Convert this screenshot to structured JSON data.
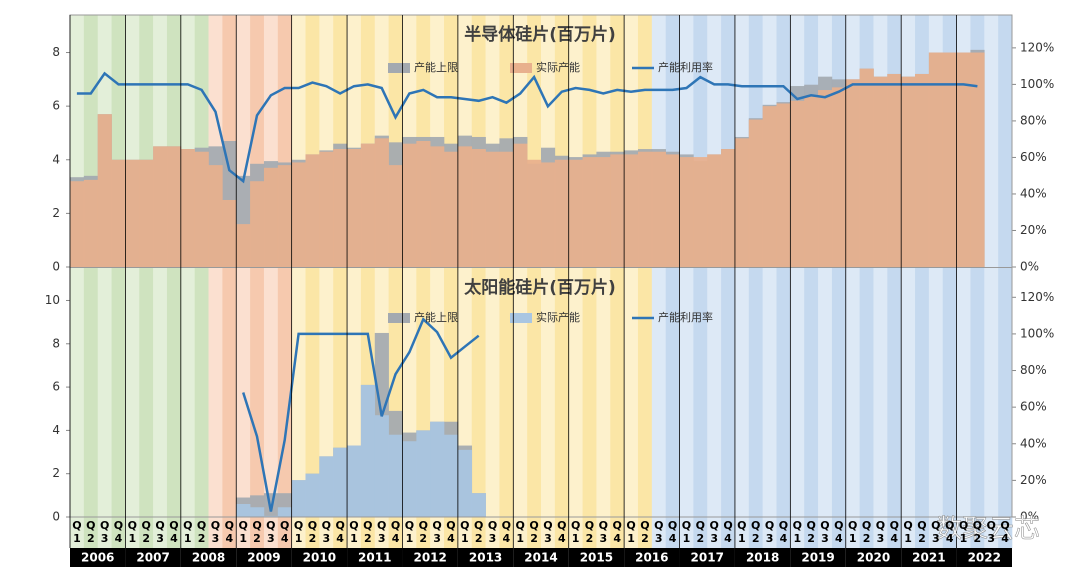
{
  "x_axis": {
    "categories": [
      "Q1",
      "Q2",
      "Q3",
      "Q4",
      "Q1",
      "Q2",
      "Q3",
      "Q4",
      "Q1",
      "Q2",
      "Q3",
      "Q4",
      "Q1",
      "Q2",
      "Q3",
      "Q4",
      "Q1",
      "Q2",
      "Q3",
      "Q4",
      "Q1",
      "Q2",
      "Q3",
      "Q4",
      "Q1",
      "Q2",
      "Q3",
      "Q4",
      "Q1",
      "Q2",
      "Q3",
      "Q4",
      "Q1",
      "Q2",
      "Q3",
      "Q4",
      "Q1",
      "Q2",
      "Q3",
      "Q4",
      "Q1",
      "Q2",
      "Q3",
      "Q4",
      "Q1",
      "Q2",
      "Q3",
      "Q4",
      "Q1",
      "Q2",
      "Q3",
      "Q4",
      "Q1",
      "Q2",
      "Q3",
      "Q4",
      "Q1",
      "Q2",
      "Q3",
      "Q4",
      "Q1",
      "Q2",
      "Q3",
      "Q4",
      "Q1",
      "Q2",
      "Q3",
      "Q4"
    ],
    "years": [
      "2006",
      "2007",
      "2008",
      "2009",
      "2010",
      "2011",
      "2012",
      "2013",
      "2014",
      "2015",
      "2016",
      "2017",
      "2018",
      "2019",
      "2020",
      "2021",
      "2022"
    ]
  },
  "watermark": "数聚云芯",
  "chart_data": [
    {
      "type": "bar-line",
      "title": "半导体硅片(百万片)",
      "ylim": [
        0,
        9.4
      ],
      "yticks": [
        0,
        2,
        4,
        6,
        8
      ],
      "y2lim": [
        0,
        138
      ],
      "y2ticks": [
        {
          "value": 0,
          "label": "0%"
        },
        {
          "value": 20,
          "label": "20%"
        },
        {
          "value": 40,
          "label": "40%"
        },
        {
          "value": 60,
          "label": "60%"
        },
        {
          "value": 80,
          "label": "80%"
        },
        {
          "value": 100,
          "label": "100%"
        },
        {
          "value": 120,
          "label": "120%"
        }
      ],
      "series": [
        {
          "name": "产能上限",
          "type": "bar",
          "color": "#a3a9b0",
          "values": [
            3.35,
            3.4,
            5.7,
            4.0,
            4.0,
            4.0,
            4.5,
            4.5,
            4.4,
            4.45,
            4.5,
            4.7,
            3.4,
            3.85,
            3.95,
            3.9,
            4.0,
            4.2,
            4.35,
            4.6,
            4.45,
            4.6,
            4.9,
            4.65,
            4.85,
            4.85,
            4.85,
            4.6,
            4.9,
            4.85,
            4.6,
            4.8,
            4.85,
            3.85,
            4.45,
            4.15,
            4.1,
            4.2,
            4.3,
            4.3,
            4.35,
            4.4,
            4.4,
            4.3,
            4.2,
            3.95,
            4.2,
            4.4,
            4.85,
            5.55,
            6.05,
            6.15,
            6.75,
            6.8,
            7.1,
            7.0,
            7.0,
            7.4,
            7.1,
            7.2,
            7.1,
            7.2,
            8.0,
            8.0,
            8.0,
            8.1,
            null,
            null
          ]
        },
        {
          "name": "实际产能",
          "type": "bar",
          "color": "#e8b08d",
          "values": [
            3.2,
            3.25,
            5.7,
            4.0,
            4.0,
            4.0,
            4.5,
            4.5,
            4.4,
            4.3,
            3.8,
            2.5,
            1.6,
            3.2,
            3.7,
            3.8,
            3.9,
            4.2,
            4.3,
            4.4,
            4.4,
            4.6,
            4.8,
            3.8,
            4.6,
            4.7,
            4.5,
            4.3,
            4.5,
            4.4,
            4.3,
            4.3,
            4.6,
            4.0,
            3.9,
            4.0,
            4.0,
            4.1,
            4.1,
            4.2,
            4.2,
            4.3,
            4.3,
            4.2,
            4.1,
            4.1,
            4.2,
            4.4,
            4.8,
            5.5,
            6.0,
            6.1,
            6.2,
            6.4,
            6.6,
            6.7,
            7.0,
            7.4,
            7.1,
            7.2,
            7.1,
            7.2,
            8.0,
            8.0,
            8.0,
            8.0,
            null,
            null
          ]
        },
        {
          "name": "产能利用率",
          "type": "line",
          "axis": "y2",
          "color": "#2e75b6",
          "values": [
            95,
            95,
            106,
            100,
            100,
            100,
            100,
            100,
            100,
            97,
            85,
            53,
            47,
            83,
            94,
            98,
            98,
            101,
            99,
            95,
            99,
            100,
            98,
            82,
            95,
            97,
            93,
            93,
            92,
            91,
            93,
            90,
            95,
            104,
            88,
            96,
            98,
            97,
            95,
            97,
            96,
            97,
            97,
            97,
            98,
            104,
            100,
            100,
            99,
            99,
            99,
            99,
            92,
            94,
            93,
            96,
            100,
            100,
            100,
            100,
            100,
            100,
            100,
            100,
            100,
            99,
            null,
            null
          ]
        }
      ]
    },
    {
      "type": "bar-line",
      "title": "太阳能硅片(百万片)",
      "ylim": [
        0,
        11.5
      ],
      "yticks": [
        0,
        2,
        4,
        6,
        8,
        10
      ],
      "y2lim": [
        0,
        136
      ],
      "y2ticks": [
        {
          "value": 0,
          "label": "0%"
        },
        {
          "value": 20,
          "label": "20%"
        },
        {
          "value": 40,
          "label": "40%"
        },
        {
          "value": 60,
          "label": "60%"
        },
        {
          "value": 80,
          "label": "80%"
        },
        {
          "value": 100,
          "label": "100%"
        },
        {
          "value": 120,
          "label": "120%"
        }
      ],
      "series": [
        {
          "name": "产能上限",
          "type": "bar",
          "color": "#a3a9b0",
          "values": [
            null,
            null,
            null,
            null,
            null,
            null,
            null,
            null,
            null,
            null,
            null,
            null,
            0.9,
            1.0,
            1.1,
            1.1,
            1.7,
            2.0,
            2.8,
            3.2,
            3.3,
            6.1,
            8.5,
            4.9,
            3.9,
            4.0,
            4.4,
            4.4,
            3.3,
            1.1,
            null,
            null,
            null,
            null,
            null,
            null,
            null,
            null,
            null,
            null,
            null,
            null,
            null,
            null,
            null,
            null,
            null,
            null,
            null,
            null,
            null,
            null,
            null,
            null,
            null,
            null,
            null,
            null,
            null,
            null,
            null,
            null,
            null,
            null,
            null,
            null,
            null,
            null
          ]
        },
        {
          "name": "实际产能",
          "type": "bar",
          "color": "#a9c6e2",
          "values": [
            null,
            null,
            null,
            null,
            null,
            null,
            null,
            null,
            null,
            null,
            null,
            null,
            0.6,
            0.45,
            0.05,
            0.45,
            1.7,
            2.0,
            2.8,
            3.2,
            3.3,
            6.1,
            4.7,
            3.8,
            3.5,
            4.0,
            4.4,
            3.8,
            3.1,
            1.1,
            null,
            null,
            null,
            null,
            null,
            null,
            null,
            null,
            null,
            null,
            null,
            null,
            null,
            null,
            null,
            null,
            null,
            null,
            null,
            null,
            null,
            null,
            null,
            null,
            null,
            null,
            null,
            null,
            null,
            null,
            null,
            null,
            null,
            null,
            null,
            null,
            null,
            null
          ]
        },
        {
          "name": "产能利用率",
          "type": "line",
          "axis": "y2",
          "color": "#2e75b6",
          "values": [
            null,
            null,
            null,
            null,
            null,
            null,
            null,
            null,
            null,
            null,
            null,
            null,
            68,
            44,
            3,
            42,
            100,
            100,
            100,
            100,
            100,
            100,
            55,
            78,
            90,
            108,
            101,
            87,
            93,
            99,
            null,
            null,
            null,
            null,
            null,
            null,
            null,
            null,
            null,
            null,
            null,
            null,
            null,
            null,
            null,
            null,
            null,
            null,
            null,
            null,
            null,
            null,
            null,
            null,
            null,
            null,
            null,
            null,
            null,
            null,
            null,
            null,
            null,
            null,
            null,
            null,
            null,
            null
          ]
        }
      ]
    }
  ]
}
